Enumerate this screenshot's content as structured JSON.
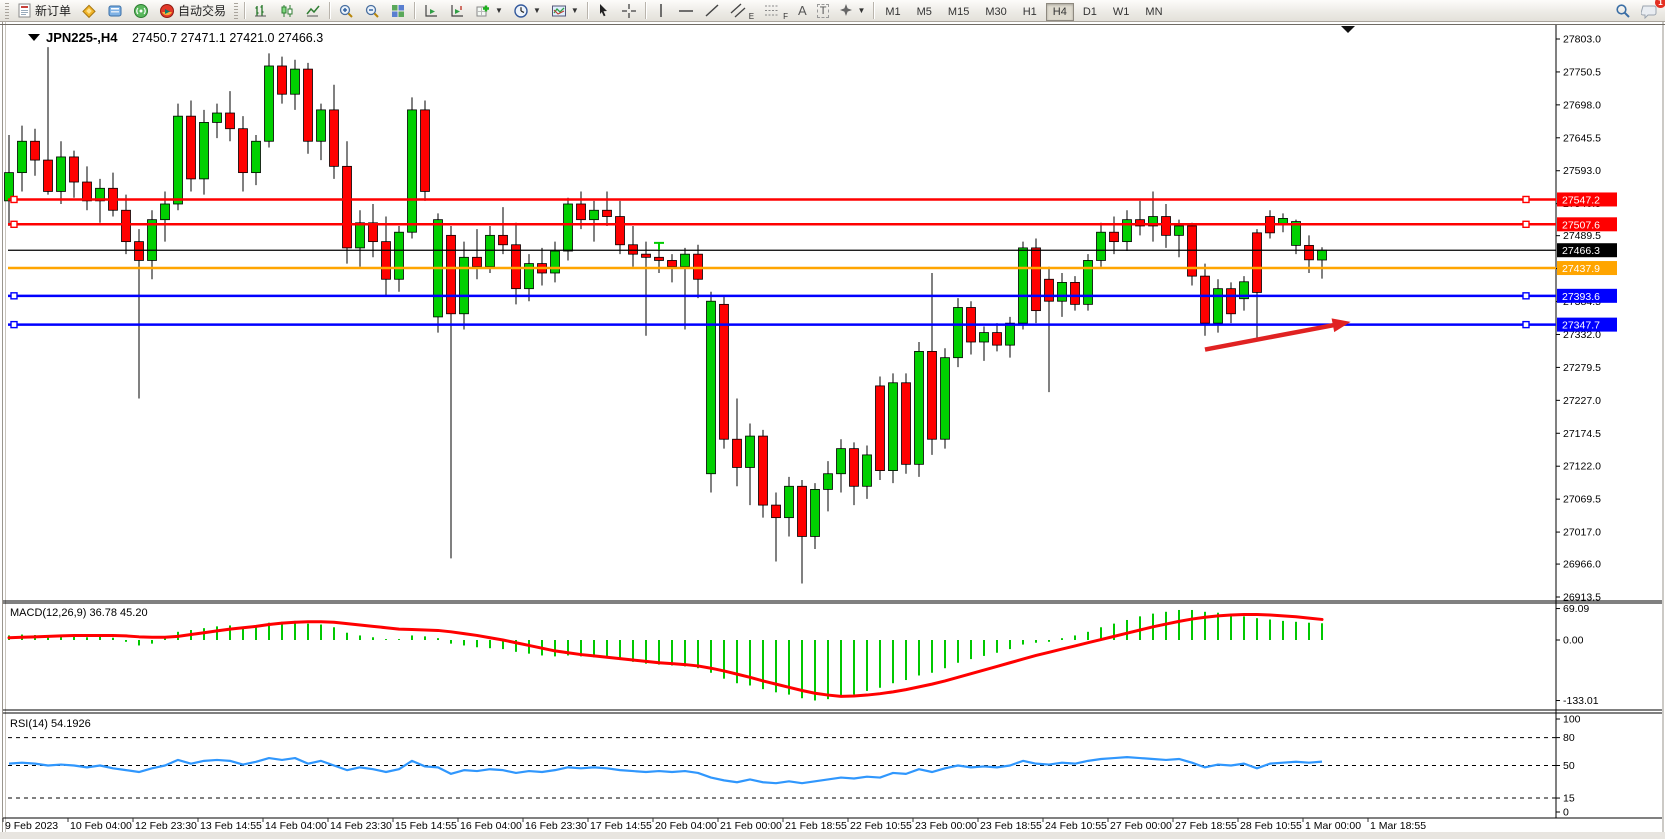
{
  "toolbar": {
    "new_order": "新订单",
    "auto_trading": "自动交易",
    "timeframes": [
      "M1",
      "M5",
      "M15",
      "M30",
      "H1",
      "H4",
      "D1",
      "W1",
      "MN"
    ],
    "active_timeframe": "H4",
    "notification_badge": "1",
    "text_tool": "A",
    "label_tool": "T",
    "channel_letter": "E",
    "fibo_letter": "F"
  },
  "chart": {
    "title_symbol": "JPN225-,H4",
    "title_ohlc": "27450.7 27471.1 27421.0 27466.3"
  },
  "chart_data": {
    "type": "candlestick",
    "symbol": "JPN225-",
    "timeframe": "H4",
    "current": {
      "open": 27450.7,
      "high": 27471.1,
      "low": 27421.0,
      "close": 27466.3
    },
    "price_axis_ticks": [
      "27803.0",
      "27750.5",
      "27698.0",
      "27645.5",
      "27593.0",
      "27540.5",
      "27489.5",
      "27437.0",
      "27384.5",
      "27332.0",
      "27279.5",
      "27227.0",
      "27174.5",
      "27122.0",
      "27069.5",
      "27017.0",
      "26966.0",
      "26913.5"
    ],
    "time_labels": [
      "9 Feb 2023",
      "10 Feb 04:00",
      "12 Feb 23:30",
      "13 Feb 14:55",
      "14 Feb 04:00",
      "14 Feb 23:30",
      "15 Feb 14:55",
      "16 Feb 04:00",
      "16 Feb 23:30",
      "17 Feb 14:55",
      "20 Feb 04:00",
      "21 Feb 00:00",
      "21 Feb 18:55",
      "22 Feb 10:55",
      "23 Feb 00:00",
      "23 Feb 18:55",
      "24 Feb 10:55",
      "27 Feb 00:00",
      "27 Feb 18:55",
      "28 Feb 10:55",
      "1 Mar 00:00",
      "1 Mar 18:55"
    ],
    "hlines": [
      {
        "price": 27547.2,
        "label": "27547.2",
        "color": "#ff0000",
        "width": 2.5,
        "markers": true
      },
      {
        "price": 27507.6,
        "label": "27507.6",
        "color": "#ff0000",
        "width": 2.5,
        "markers": true
      },
      {
        "price": 27466.3,
        "label": "27466.3",
        "color": "#000000",
        "width": 1.2,
        "markers": false
      },
      {
        "price": 27437.9,
        "label": "27437.9",
        "color": "#ffa500",
        "width": 2.5,
        "markers": false
      },
      {
        "price": 27393.6,
        "label": "27393.6",
        "color": "#0000ff",
        "width": 2.5,
        "markers": true
      },
      {
        "price": 27347.7,
        "label": "27347.7",
        "color": "#0000ff",
        "width": 2.5,
        "markers": true
      }
    ],
    "candles": [
      [
        27545,
        27650,
        27505,
        27590
      ],
      [
        27590,
        27665,
        27560,
        27640
      ],
      [
        27640,
        27660,
        27585,
        27610
      ],
      [
        27610,
        27790,
        27555,
        27560
      ],
      [
        27560,
        27640,
        27540,
        27615
      ],
      [
        27615,
        27625,
        27550,
        27575
      ],
      [
        27575,
        27600,
        27530,
        27545
      ],
      [
        27545,
        27580,
        27510,
        27565
      ],
      [
        27565,
        27590,
        27520,
        27530
      ],
      [
        27530,
        27555,
        27460,
        27480
      ],
      [
        27480,
        27500,
        27230,
        27450
      ],
      [
        27450,
        27530,
        27420,
        27515
      ],
      [
        27515,
        27560,
        27480,
        27540
      ],
      [
        27540,
        27700,
        27530,
        27680
      ],
      [
        27680,
        27705,
        27560,
        27580
      ],
      [
        27580,
        27690,
        27555,
        27670
      ],
      [
        27670,
        27700,
        27645,
        27685
      ],
      [
        27685,
        27720,
        27640,
        27660
      ],
      [
        27660,
        27680,
        27560,
        27590
      ],
      [
        27590,
        27650,
        27570,
        27640
      ],
      [
        27640,
        27780,
        27630,
        27760
      ],
      [
        27760,
        27775,
        27700,
        27715
      ],
      [
        27715,
        27770,
        27690,
        27755
      ],
      [
        27755,
        27765,
        27620,
        27640
      ],
      [
        27640,
        27700,
        27610,
        27690
      ],
      [
        27690,
        27730,
        27580,
        27600
      ],
      [
        27600,
        27640,
        27445,
        27470
      ],
      [
        27470,
        27530,
        27440,
        27510
      ],
      [
        27510,
        27540,
        27455,
        27480
      ],
      [
        27480,
        27520,
        27395,
        27420
      ],
      [
        27420,
        27505,
        27400,
        27495
      ],
      [
        27495,
        27710,
        27485,
        27690
      ],
      [
        27690,
        27705,
        27545,
        27560
      ],
      [
        27360,
        27525,
        27335,
        27515
      ],
      [
        27490,
        27505,
        26975,
        27365
      ],
      [
        27365,
        27480,
        27340,
        27455
      ],
      [
        27455,
        27500,
        27420,
        27440
      ],
      [
        27440,
        27505,
        27430,
        27490
      ],
      [
        27490,
        27535,
        27460,
        27475
      ],
      [
        27475,
        27510,
        27380,
        27405
      ],
      [
        27405,
        27460,
        27385,
        27445
      ],
      [
        27445,
        27470,
        27410,
        27430
      ],
      [
        27430,
        27480,
        27415,
        27465
      ],
      [
        27465,
        27550,
        27450,
        27540
      ],
      [
        27540,
        27560,
        27500,
        27515
      ],
      [
        27515,
        27545,
        27480,
        27530
      ],
      [
        27530,
        27560,
        27505,
        27520
      ],
      [
        27520,
        27545,
        27460,
        27475
      ],
      [
        27475,
        27505,
        27440,
        27460
      ],
      [
        27460,
        27480,
        27330,
        27455
      ],
      [
        27455,
        27470,
        27430,
        27450
      ],
      [
        27450,
        27460,
        27415,
        27440
      ],
      [
        27440,
        27470,
        27340,
        27460
      ],
      [
        27460,
        27475,
        27390,
        27420
      ],
      [
        27110,
        27400,
        27080,
        27385
      ],
      [
        27380,
        27395,
        27150,
        27165
      ],
      [
        27165,
        27230,
        27090,
        27120
      ],
      [
        27120,
        27190,
        27060,
        27170
      ],
      [
        27170,
        27180,
        27040,
        27060
      ],
      [
        27060,
        27080,
        26970,
        27040
      ],
      [
        27040,
        27105,
        27010,
        27090
      ],
      [
        27090,
        27100,
        26935,
        27010
      ],
      [
        27010,
        27095,
        26990,
        27085
      ],
      [
        27085,
        27130,
        27050,
        27110
      ],
      [
        27110,
        27165,
        27080,
        27150
      ],
      [
        27150,
        27160,
        27060,
        27090
      ],
      [
        27090,
        27155,
        27070,
        27140
      ],
      [
        27250,
        27265,
        27100,
        27115
      ],
      [
        27115,
        27270,
        27095,
        27255
      ],
      [
        27255,
        27270,
        27110,
        27125
      ],
      [
        27125,
        27320,
        27105,
        27305
      ],
      [
        27305,
        27430,
        27140,
        27165
      ],
      [
        27165,
        27310,
        27150,
        27295
      ],
      [
        27295,
        27390,
        27280,
        27375
      ],
      [
        27375,
        27385,
        27300,
        27320
      ],
      [
        27320,
        27345,
        27290,
        27335
      ],
      [
        27335,
        27350,
        27305,
        27315
      ],
      [
        27315,
        27360,
        27295,
        27350
      ],
      [
        27350,
        27480,
        27340,
        27470
      ],
      [
        27470,
        27485,
        27350,
        27370
      ],
      [
        27420,
        27440,
        27240,
        27385
      ],
      [
        27385,
        27430,
        27360,
        27415
      ],
      [
        27415,
        27425,
        27370,
        27380
      ],
      [
        27380,
        27460,
        27370,
        27450
      ],
      [
        27450,
        27510,
        27440,
        27495
      ],
      [
        27495,
        27520,
        27460,
        27480
      ],
      [
        27480,
        27530,
        27465,
        27515
      ],
      [
        27515,
        27545,
        27490,
        27505
      ],
      [
        27505,
        27560,
        27480,
        27520
      ],
      [
        27520,
        27540,
        27470,
        27490
      ],
      [
        27490,
        27515,
        27455,
        27505
      ],
      [
        27505,
        27510,
        27410,
        27425
      ],
      [
        27425,
        27445,
        27330,
        27350
      ],
      [
        27350,
        27420,
        27335,
        27405
      ],
      [
        27405,
        27415,
        27350,
        27365
      ],
      [
        27389,
        27425,
        27370,
        27416
      ],
      [
        27494,
        27500,
        27325,
        27399
      ],
      [
        27520,
        27530,
        27485,
        27494
      ],
      [
        27509,
        27525,
        27495,
        27517
      ],
      [
        27474,
        27515,
        27460,
        27512
      ],
      [
        27474,
        27490,
        27430,
        27451
      ],
      [
        27450.7,
        27471.1,
        27421.0,
        27466.3
      ]
    ],
    "indicators": {
      "macd": {
        "label": "MACD(12,26,9) 36.78 45.20",
        "axis_ticks": [
          69.09,
          0.0,
          -133.01
        ],
        "axis_labels": [
          "69.09",
          "0.00",
          "-133.01"
        ],
        "histogram": [
          10,
          12,
          11,
          9,
          10,
          8,
          6,
          7,
          5,
          -4,
          -12,
          -8,
          6,
          18,
          22,
          26,
          30,
          32,
          28,
          30,
          38,
          40,
          42,
          36,
          34,
          28,
          16,
          10,
          6,
          2,
          2,
          10,
          8,
          4,
          -8,
          -12,
          -16,
          -18,
          -20,
          -26,
          -30,
          -34,
          -36,
          -34,
          -36,
          -38,
          -40,
          -44,
          -48,
          -52,
          -54,
          -56,
          -58,
          -62,
          -72,
          -85,
          -95,
          -100,
          -108,
          -115,
          -120,
          -128,
          -133,
          -130,
          -125,
          -120,
          -112,
          -105,
          -95,
          -88,
          -78,
          -72,
          -62,
          -50,
          -42,
          -35,
          -28,
          -20,
          -10,
          -6,
          -4,
          4,
          10,
          18,
          28,
          36,
          44,
          52,
          58,
          62,
          66,
          66,
          62,
          60,
          58,
          52,
          48,
          45,
          42,
          40,
          38,
          36.78
        ],
        "signal": [
          5,
          6,
          7,
          8,
          9,
          10,
          10,
          10,
          10,
          9,
          7,
          6,
          6,
          8,
          12,
          16,
          20,
          24,
          27,
          30,
          34,
          37,
          39,
          40,
          40,
          39,
          36,
          33,
          30,
          27,
          24,
          23,
          22,
          21,
          18,
          14,
          10,
          5,
          0,
          -6,
          -12,
          -18,
          -24,
          -28,
          -32,
          -35,
          -38,
          -41,
          -44,
          -47,
          -50,
          -52,
          -54,
          -57,
          -62,
          -68,
          -75,
          -82,
          -90,
          -97,
          -104,
          -111,
          -117,
          -121,
          -124,
          -123,
          -121,
          -118,
          -114,
          -109,
          -103,
          -97,
          -90,
          -82,
          -74,
          -66,
          -58,
          -50,
          -42,
          -34,
          -27,
          -20,
          -13,
          -6,
          1,
          8,
          15,
          22,
          29,
          35,
          41,
          46,
          50,
          53,
          55,
          56,
          56,
          55,
          53,
          51,
          48,
          45.2
        ]
      },
      "rsi": {
        "label": "RSI(14) 54.1926",
        "axis_labels": [
          "100",
          "80",
          "50",
          "15",
          "0"
        ],
        "axis_ticks": [
          100,
          80,
          50,
          15,
          0
        ],
        "dashed_levels": [
          80,
          50,
          15
        ],
        "values": [
          52,
          53,
          52,
          50,
          51,
          50,
          48,
          50,
          47,
          45,
          43,
          47,
          50,
          56,
          52,
          55,
          56,
          55,
          51,
          54,
          58,
          56,
          58,
          52,
          55,
          50,
          45,
          48,
          46,
          43,
          46,
          55,
          49,
          48,
          41,
          45,
          44,
          46,
          45,
          42,
          44,
          43,
          45,
          48,
          47,
          48,
          47,
          45,
          44,
          43,
          44,
          43,
          44,
          42,
          37,
          34,
          32,
          35,
          32,
          31,
          33,
          31,
          33,
          35,
          37,
          36,
          38,
          37,
          42,
          41,
          46,
          43,
          47,
          50,
          48,
          49,
          48,
          50,
          55,
          52,
          51,
          53,
          52,
          55,
          57,
          58,
          59,
          58,
          57,
          56,
          57,
          53,
          48,
          51,
          50,
          52,
          47,
          52,
          53,
          54,
          53,
          54.19
        ]
      }
    },
    "annotations": {
      "arrow": {
        "from_index": 92,
        "from_price": 27308,
        "to_index": 103.2,
        "to_price": 27352,
        "color": "#e02222"
      },
      "t_marker": {
        "index": 50,
        "price": 27478,
        "color": "#00cc00"
      },
      "shift_marker_index": 103
    },
    "colors": {
      "up": "#00d000",
      "down": "#ff0000",
      "wick": "#000000",
      "macd_hist": "#00c800",
      "macd_signal": "#ff0000",
      "rsi_line": "#3097fd"
    }
  }
}
